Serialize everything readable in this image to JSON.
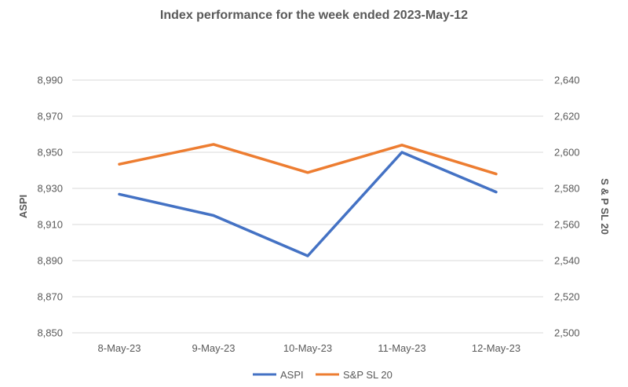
{
  "chart_data": {
    "type": "line",
    "title": "Index performance for the week ended 2023-May-12",
    "categories": [
      "8-May-23",
      "9-May-23",
      "10-May-23",
      "11-May-23",
      "12-May-23"
    ],
    "ylabel": "ASPI",
    "y2label": "S & P SL 20",
    "ylim": [
      8850,
      8990
    ],
    "y2lim": [
      2500,
      2640
    ],
    "yticks": [
      "8,850",
      "8,870",
      "8,890",
      "8,910",
      "8,930",
      "8,950",
      "8,970",
      "8,990"
    ],
    "y2ticks": [
      "2,500",
      "2,520",
      "2,540",
      "2,560",
      "2,580",
      "2,600",
      "2,620",
      "2,640"
    ],
    "grid": true,
    "legend_position": "bottom",
    "series": [
      {
        "name": "ASPI",
        "axis": "left",
        "color": "#4472c4",
        "values": [
          8926.8,
          8915.0,
          8892.6,
          8950.0,
          8928.0
        ]
      },
      {
        "name": "S&P SL 20",
        "axis": "right",
        "color": "#ed7d31",
        "values": [
          2593.4,
          2604.4,
          2588.8,
          2604.0,
          2588.0
        ]
      }
    ]
  }
}
